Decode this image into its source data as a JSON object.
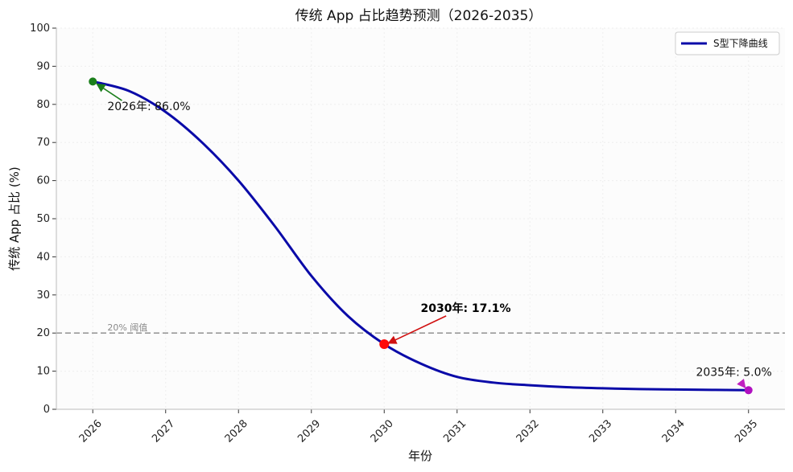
{
  "chart_data": {
    "type": "line",
    "title": "传统 App 占比趋势预测（2026-2035）",
    "xlabel": "年份",
    "ylabel": "传统 App 占比 (%)",
    "xlim": [
      2025.5,
      2035.5
    ],
    "ylim": [
      0,
      100
    ],
    "x_ticks": [
      "2026",
      "2027",
      "2028",
      "2029",
      "2030",
      "2031",
      "2032",
      "2033",
      "2034",
      "2035"
    ],
    "y_ticks": [
      "0",
      "10",
      "20",
      "30",
      "40",
      "50",
      "60",
      "70",
      "80",
      "90",
      "100"
    ],
    "series": [
      {
        "name": "S型下降曲线",
        "color": "#0a0aa8",
        "x": [
          2026,
          2026.5,
          2027,
          2027.5,
          2028,
          2028.5,
          2029,
          2029.5,
          2030,
          2030.5,
          2031,
          2031.5,
          2032,
          2032.5,
          2033,
          2033.5,
          2034,
          2034.5,
          2035
        ],
        "values": [
          86,
          83.5,
          78,
          70,
          60,
          48,
          35,
          24.5,
          17.1,
          12,
          8.5,
          7,
          6.3,
          5.8,
          5.5,
          5.3,
          5.2,
          5.1,
          5.0
        ]
      }
    ],
    "threshold": {
      "value": 20,
      "label": "20% 阈值",
      "color": "#999999"
    },
    "highlight_points": [
      {
        "x": 2026,
        "y": 86.0,
        "color": "#1b7f1b",
        "label": "2026年: 86.0%",
        "arrow_color": "#1b7f1b"
      },
      {
        "x": 2030,
        "y": 17.1,
        "color": "#ff0a0a",
        "label": "2030年: 17.1%",
        "arrow_color": "#d01010"
      },
      {
        "x": 2035,
        "y": 5.0,
        "color": "#b010c0",
        "label": "2035年: 5.0%",
        "arrow_color": "#c020c0"
      }
    ],
    "legend": {
      "position": "top-right",
      "entries": [
        "S型下降曲线"
      ]
    },
    "grid": true
  }
}
